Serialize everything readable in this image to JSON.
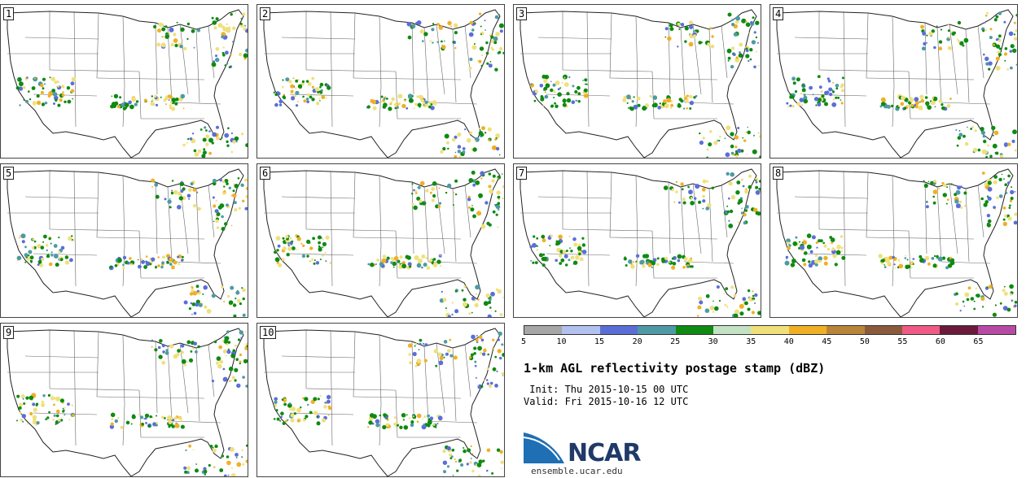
{
  "panels": [
    {
      "label": "1"
    },
    {
      "label": "2"
    },
    {
      "label": "3"
    },
    {
      "label": "4"
    },
    {
      "label": "5"
    },
    {
      "label": "6"
    },
    {
      "label": "7"
    },
    {
      "label": "8"
    },
    {
      "label": "9"
    },
    {
      "label": "10"
    }
  ],
  "colorbar": {
    "colors": [
      "#a6a6a6",
      "#b3c1ef",
      "#5b6ed8",
      "#4e9aa4",
      "#0f8a12",
      "#c3e2c3",
      "#f0e07c",
      "#efb026",
      "#b8853a",
      "#8b5a3c",
      "#ef5b85",
      "#6c1a3a",
      "#b84aa6"
    ],
    "labels": [
      "5",
      "10",
      "15",
      "20",
      "25",
      "30",
      "35",
      "40",
      "45",
      "50",
      "55",
      "60",
      "65"
    ]
  },
  "title": "1-km AGL reflectivity postage stamp (dBZ)",
  "init": " Init: Thu 2015-10-15 00 UTC",
  "valid": "Valid: Fri 2015-10-16 12 UTC",
  "logo": {
    "text": "NCAR",
    "color": "#1f3a68",
    "swoosh_color": "#1f6fb5"
  },
  "site": "ensemble.ucar.edu"
}
